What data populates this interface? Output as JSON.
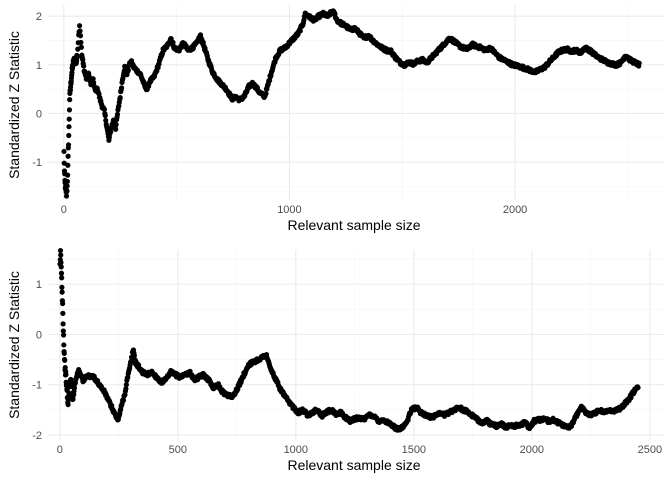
{
  "chart_data": [
    {
      "type": "scatter",
      "title": "",
      "xlabel": "Relevant sample size",
      "ylabel": "Standardized Z Statistic",
      "xlim": [
        -70,
        2660
      ],
      "ylim": [
        -1.78,
        2.23
      ],
      "xticks": [
        0,
        1000,
        2000
      ],
      "xtick_labels": [
        "0",
        "1000",
        "2000"
      ],
      "yticks": [
        -1,
        0,
        1,
        2
      ],
      "ytick_labels": [
        "-1",
        "0",
        "1",
        "2"
      ],
      "grid": true,
      "legend": "none",
      "point_color": "#000000",
      "n_max": 2550,
      "path": [
        [
          1,
          -0.8
        ],
        [
          3,
          -1.2
        ],
        [
          5,
          -1.4
        ],
        [
          8,
          -1.55
        ],
        [
          12,
          -1.68
        ],
        [
          15,
          -1.5
        ],
        [
          18,
          -1.1
        ],
        [
          20,
          -0.75
        ],
        [
          23,
          -0.3
        ],
        [
          26,
          0.3
        ],
        [
          30,
          0.55
        ],
        [
          35,
          0.8
        ],
        [
          40,
          1.0
        ],
        [
          45,
          1.1
        ],
        [
          55,
          1.05
        ],
        [
          60,
          1.2
        ],
        [
          65,
          1.55
        ],
        [
          70,
          1.82
        ],
        [
          75,
          1.55
        ],
        [
          80,
          1.2
        ],
        [
          90,
          0.9
        ],
        [
          100,
          0.72
        ],
        [
          110,
          0.8
        ],
        [
          120,
          0.6
        ],
        [
          130,
          0.68
        ],
        [
          140,
          0.45
        ],
        [
          150,
          0.5
        ],
        [
          160,
          0.3
        ],
        [
          170,
          0.15
        ],
        [
          180,
          0.05
        ],
        [
          190,
          -0.25
        ],
        [
          200,
          -0.55
        ],
        [
          210,
          -0.3
        ],
        [
          220,
          -0.15
        ],
        [
          230,
          -0.3
        ],
        [
          240,
          0.05
        ],
        [
          250,
          0.35
        ],
        [
          260,
          0.7
        ],
        [
          270,
          0.95
        ],
        [
          280,
          0.8
        ],
        [
          290,
          1.0
        ],
        [
          300,
          1.05
        ],
        [
          310,
          0.95
        ],
        [
          320,
          0.9
        ],
        [
          340,
          0.8
        ],
        [
          360,
          0.55
        ],
        [
          370,
          0.5
        ],
        [
          380,
          0.65
        ],
        [
          390,
          0.7
        ],
        [
          400,
          0.75
        ],
        [
          420,
          1.0
        ],
        [
          440,
          1.3
        ],
        [
          460,
          1.4
        ],
        [
          475,
          1.55
        ],
        [
          490,
          1.35
        ],
        [
          510,
          1.3
        ],
        [
          530,
          1.45
        ],
        [
          550,
          1.3
        ],
        [
          570,
          1.35
        ],
        [
          590,
          1.45
        ],
        [
          605,
          1.6
        ],
        [
          620,
          1.4
        ],
        [
          640,
          1.1
        ],
        [
          660,
          0.85
        ],
        [
          680,
          0.7
        ],
        [
          700,
          0.6
        ],
        [
          720,
          0.5
        ],
        [
          740,
          0.35
        ],
        [
          750,
          0.28
        ],
        [
          760,
          0.35
        ],
        [
          780,
          0.28
        ],
        [
          800,
          0.35
        ],
        [
          820,
          0.55
        ],
        [
          835,
          0.62
        ],
        [
          850,
          0.55
        ],
        [
          870,
          0.42
        ],
        [
          890,
          0.35
        ],
        [
          900,
          0.5
        ],
        [
          920,
          0.85
        ],
        [
          940,
          1.15
        ],
        [
          960,
          1.3
        ],
        [
          980,
          1.35
        ],
        [
          1000,
          1.45
        ],
        [
          1020,
          1.55
        ],
        [
          1040,
          1.65
        ],
        [
          1060,
          1.85
        ],
        [
          1070,
          2.05
        ],
        [
          1090,
          1.98
        ],
        [
          1110,
          1.92
        ],
        [
          1130,
          2.0
        ],
        [
          1150,
          2.05
        ],
        [
          1170,
          2.0
        ],
        [
          1190,
          2.1
        ],
        [
          1200,
          2.05
        ],
        [
          1210,
          1.92
        ],
        [
          1230,
          1.85
        ],
        [
          1250,
          1.8
        ],
        [
          1270,
          1.72
        ],
        [
          1290,
          1.75
        ],
        [
          1310,
          1.65
        ],
        [
          1330,
          1.55
        ],
        [
          1350,
          1.6
        ],
        [
          1370,
          1.5
        ],
        [
          1390,
          1.42
        ],
        [
          1410,
          1.35
        ],
        [
          1430,
          1.3
        ],
        [
          1450,
          1.28
        ],
        [
          1470,
          1.15
        ],
        [
          1490,
          1.05
        ],
        [
          1510,
          1.0
        ],
        [
          1530,
          1.05
        ],
        [
          1550,
          1.02
        ],
        [
          1570,
          1.08
        ],
        [
          1590,
          1.1
        ],
        [
          1610,
          1.05
        ],
        [
          1630,
          1.15
        ],
        [
          1650,
          1.25
        ],
        [
          1670,
          1.35
        ],
        [
          1690,
          1.45
        ],
        [
          1710,
          1.55
        ],
        [
          1730,
          1.48
        ],
        [
          1750,
          1.4
        ],
        [
          1770,
          1.35
        ],
        [
          1790,
          1.32
        ],
        [
          1810,
          1.42
        ],
        [
          1830,
          1.38
        ],
        [
          1850,
          1.35
        ],
        [
          1870,
          1.3
        ],
        [
          1890,
          1.35
        ],
        [
          1910,
          1.25
        ],
        [
          1930,
          1.15
        ],
        [
          1950,
          1.1
        ],
        [
          1970,
          1.05
        ],
        [
          1990,
          1.0
        ],
        [
          2010,
          0.98
        ],
        [
          2030,
          0.95
        ],
        [
          2050,
          0.92
        ],
        [
          2070,
          0.88
        ],
        [
          2090,
          0.85
        ],
        [
          2110,
          0.9
        ],
        [
          2130,
          0.95
        ],
        [
          2150,
          1.05
        ],
        [
          2170,
          1.15
        ],
        [
          2190,
          1.25
        ],
        [
          2210,
          1.3
        ],
        [
          2230,
          1.32
        ],
        [
          2250,
          1.28
        ],
        [
          2270,
          1.3
        ],
        [
          2290,
          1.25
        ],
        [
          2310,
          1.35
        ],
        [
          2330,
          1.3
        ],
        [
          2350,
          1.22
        ],
        [
          2370,
          1.15
        ],
        [
          2390,
          1.1
        ],
        [
          2410,
          1.05
        ],
        [
          2430,
          1.02
        ],
        [
          2450,
          1.0
        ],
        [
          2470,
          1.05
        ],
        [
          2490,
          1.2
        ],
        [
          2510,
          1.1
        ],
        [
          2530,
          1.05
        ],
        [
          2550,
          1.0
        ]
      ]
    },
    {
      "type": "scatter",
      "title": "",
      "xlabel": "Relevant sample size",
      "ylabel": "Standardized Z Statistic",
      "xlim": [
        -50,
        2560
      ],
      "ylim": [
        -2.1,
        1.68
      ],
      "xticks": [
        0,
        500,
        1000,
        1500,
        2000,
        2500
      ],
      "xtick_labels": [
        "0",
        "500",
        "1000",
        "1500",
        "2000",
        "2500"
      ],
      "yticks": [
        -2,
        -1,
        0,
        1
      ],
      "ytick_labels": [
        "-2",
        "-1",
        "0",
        "1"
      ],
      "grid": true,
      "legend": "none",
      "point_color": "#000000",
      "n_max": 2450,
      "path": [
        [
          1,
          1.35
        ],
        [
          2,
          1.45
        ],
        [
          3,
          1.65
        ],
        [
          5,
          1.45
        ],
        [
          8,
          1.1
        ],
        [
          12,
          0.6
        ],
        [
          15,
          0.1
        ],
        [
          18,
          -0.3
        ],
        [
          22,
          -0.65
        ],
        [
          26,
          -0.85
        ],
        [
          30,
          -1.1
        ],
        [
          35,
          -1.4
        ],
        [
          40,
          -1.05
        ],
        [
          45,
          -0.9
        ],
        [
          50,
          -1.0
        ],
        [
          55,
          -1.3
        ],
        [
          60,
          -1.1
        ],
        [
          70,
          -0.85
        ],
        [
          80,
          -0.7
        ],
        [
          90,
          -0.8
        ],
        [
          100,
          -0.95
        ],
        [
          115,
          -0.8
        ],
        [
          130,
          -0.85
        ],
        [
          145,
          -0.85
        ],
        [
          160,
          -0.95
        ],
        [
          175,
          -1.05
        ],
        [
          190,
          -1.15
        ],
        [
          205,
          -1.3
        ],
        [
          220,
          -1.45
        ],
        [
          235,
          -1.6
        ],
        [
          245,
          -1.72
        ],
        [
          255,
          -1.55
        ],
        [
          265,
          -1.35
        ],
        [
          275,
          -1.2
        ],
        [
          285,
          -0.9
        ],
        [
          295,
          -0.7
        ],
        [
          305,
          -0.45
        ],
        [
          312,
          -0.3
        ],
        [
          320,
          -0.55
        ],
        [
          335,
          -0.65
        ],
        [
          350,
          -0.75
        ],
        [
          370,
          -0.8
        ],
        [
          390,
          -0.75
        ],
        [
          410,
          -0.85
        ],
        [
          430,
          -0.95
        ],
        [
          450,
          -0.9
        ],
        [
          470,
          -0.75
        ],
        [
          490,
          -0.8
        ],
        [
          510,
          -0.85
        ],
        [
          530,
          -0.8
        ],
        [
          550,
          -0.75
        ],
        [
          570,
          -0.9
        ],
        [
          590,
          -0.85
        ],
        [
          610,
          -0.8
        ],
        [
          630,
          -0.9
        ],
        [
          650,
          -1.05
        ],
        [
          670,
          -1.0
        ],
        [
          690,
          -1.15
        ],
        [
          710,
          -1.2
        ],
        [
          730,
          -1.25
        ],
        [
          750,
          -1.1
        ],
        [
          765,
          -0.95
        ],
        [
          780,
          -0.8
        ],
        [
          800,
          -0.6
        ],
        [
          820,
          -0.55
        ],
        [
          840,
          -0.5
        ],
        [
          860,
          -0.45
        ],
        [
          875,
          -0.4
        ],
        [
          890,
          -0.65
        ],
        [
          910,
          -0.85
        ],
        [
          930,
          -1.05
        ],
        [
          950,
          -1.2
        ],
        [
          970,
          -1.35
        ],
        [
          990,
          -1.45
        ],
        [
          1010,
          -1.55
        ],
        [
          1030,
          -1.5
        ],
        [
          1050,
          -1.6
        ],
        [
          1070,
          -1.55
        ],
        [
          1090,
          -1.5
        ],
        [
          1110,
          -1.62
        ],
        [
          1130,
          -1.55
        ],
        [
          1150,
          -1.5
        ],
        [
          1170,
          -1.6
        ],
        [
          1190,
          -1.55
        ],
        [
          1210,
          -1.65
        ],
        [
          1230,
          -1.72
        ],
        [
          1250,
          -1.68
        ],
        [
          1270,
          -1.65
        ],
        [
          1290,
          -1.7
        ],
        [
          1310,
          -1.6
        ],
        [
          1330,
          -1.62
        ],
        [
          1350,
          -1.72
        ],
        [
          1370,
          -1.7
        ],
        [
          1390,
          -1.75
        ],
        [
          1410,
          -1.82
        ],
        [
          1430,
          -1.88
        ],
        [
          1450,
          -1.85
        ],
        [
          1470,
          -1.75
        ],
        [
          1490,
          -1.5
        ],
        [
          1510,
          -1.45
        ],
        [
          1530,
          -1.55
        ],
        [
          1550,
          -1.6
        ],
        [
          1570,
          -1.65
        ],
        [
          1590,
          -1.62
        ],
        [
          1610,
          -1.55
        ],
        [
          1630,
          -1.6
        ],
        [
          1650,
          -1.55
        ],
        [
          1670,
          -1.5
        ],
        [
          1690,
          -1.45
        ],
        [
          1710,
          -1.5
        ],
        [
          1730,
          -1.55
        ],
        [
          1750,
          -1.62
        ],
        [
          1770,
          -1.7
        ],
        [
          1790,
          -1.75
        ],
        [
          1810,
          -1.72
        ],
        [
          1830,
          -1.8
        ],
        [
          1850,
          -1.82
        ],
        [
          1870,
          -1.78
        ],
        [
          1890,
          -1.85
        ],
        [
          1910,
          -1.8
        ],
        [
          1930,
          -1.82
        ],
        [
          1950,
          -1.8
        ],
        [
          1970,
          -1.75
        ],
        [
          1990,
          -1.85
        ],
        [
          2010,
          -1.72
        ],
        [
          2030,
          -1.7
        ],
        [
          2050,
          -1.68
        ],
        [
          2070,
          -1.72
        ],
        [
          2090,
          -1.7
        ],
        [
          2110,
          -1.75
        ],
        [
          2130,
          -1.8
        ],
        [
          2150,
          -1.85
        ],
        [
          2170,
          -1.8
        ],
        [
          2190,
          -1.6
        ],
        [
          2210,
          -1.45
        ],
        [
          2230,
          -1.55
        ],
        [
          2250,
          -1.6
        ],
        [
          2270,
          -1.55
        ],
        [
          2290,
          -1.5
        ],
        [
          2310,
          -1.55
        ],
        [
          2330,
          -1.5
        ],
        [
          2350,
          -1.52
        ],
        [
          2370,
          -1.48
        ],
        [
          2390,
          -1.4
        ],
        [
          2410,
          -1.3
        ],
        [
          2430,
          -1.15
        ],
        [
          2450,
          -1.05
        ]
      ]
    }
  ]
}
